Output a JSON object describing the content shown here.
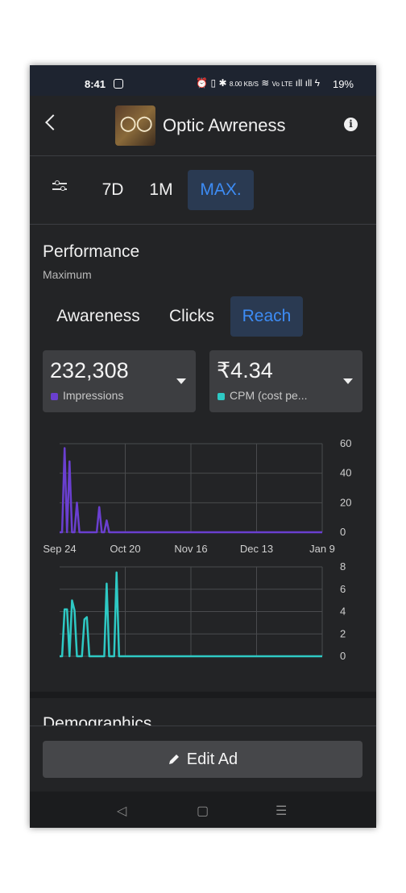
{
  "status_bar": {
    "time": "8:41",
    "network_speed": "8.00 KB/S",
    "lte": "Vo LTE",
    "battery": "19%"
  },
  "header": {
    "title": "Optic Awreness",
    "logo_icon": "eyeglasses-logo",
    "info_icon": "info-icon",
    "back_icon": "back-arrow-icon"
  },
  "range_filter": {
    "options": [
      "7D",
      "1M",
      "MAX."
    ],
    "selected": "MAX.",
    "filter_icon": "sliders-icon"
  },
  "performance": {
    "title": "Performance",
    "subtitle": "Maximum",
    "tabs": [
      "Awareness",
      "Clicks",
      "Reach"
    ],
    "selected_tab": "Reach"
  },
  "metrics": [
    {
      "value": "232,308",
      "label": "Impressions",
      "color": "#6a3fd0"
    },
    {
      "value": "₹4.34",
      "label": "CPM (cost pe...",
      "color": "#2ec9c4"
    }
  ],
  "chart_data": [
    {
      "type": "line",
      "color": "#6a3fd0",
      "x_ticks": [
        "Sep 24",
        "Oct 20",
        "Nov 16",
        "Dec 13",
        "Jan 9"
      ],
      "y_ticks": [
        0,
        20,
        40,
        60
      ],
      "ylim": [
        0,
        60
      ],
      "series": [
        {
          "values": [
            0,
            0,
            57,
            0,
            48,
            0,
            0,
            20,
            0,
            0,
            0,
            0,
            0,
            0,
            0,
            0,
            17,
            0,
            0,
            8,
            0,
            0,
            0,
            0,
            0,
            0,
            0,
            0,
            0,
            0,
            0,
            0,
            0,
            0,
            0,
            0,
            0,
            0,
            0,
            0,
            0,
            0,
            0,
            0,
            0,
            0,
            0,
            0,
            0,
            0,
            0,
            0,
            0,
            0,
            0,
            0,
            0,
            0,
            0,
            0,
            0,
            0,
            0,
            0,
            0,
            0,
            0,
            0,
            0,
            0,
            0,
            0,
            0,
            0,
            0,
            0,
            0,
            0,
            0,
            0,
            0,
            0,
            0,
            0,
            0,
            0,
            0,
            0,
            0,
            0,
            0,
            0,
            0,
            0,
            0,
            0,
            0,
            0,
            0,
            0,
            0,
            0,
            0,
            0,
            0,
            0,
            0
          ]
        }
      ],
      "grid": true
    },
    {
      "type": "line",
      "color": "#2ec9c4",
      "y_ticks": [
        0,
        2,
        4,
        6,
        8
      ],
      "ylim": [
        0,
        8
      ],
      "series": [
        {
          "values": [
            0,
            0,
            4.2,
            4.2,
            0,
            5,
            4.1,
            0,
            0,
            0,
            3.3,
            3.5,
            0,
            0,
            0,
            0,
            0,
            0,
            0,
            6.5,
            0,
            0,
            0,
            7.5,
            0,
            0,
            0,
            0,
            0,
            0,
            0,
            0,
            0,
            0,
            0,
            0,
            0,
            0,
            0,
            0,
            0,
            0,
            0,
            0,
            0,
            0,
            0,
            0,
            0,
            0,
            0,
            0,
            0,
            0,
            0,
            0,
            0,
            0,
            0,
            0,
            0,
            0,
            0,
            0,
            0,
            0,
            0,
            0,
            0,
            0,
            0,
            0,
            0,
            0,
            0,
            0,
            0,
            0,
            0,
            0,
            0,
            0,
            0,
            0,
            0,
            0,
            0,
            0,
            0,
            0,
            0,
            0,
            0,
            0,
            0,
            0,
            0,
            0,
            0,
            0,
            0,
            0,
            0,
            0,
            0,
            0,
            0
          ]
        }
      ],
      "grid": true
    }
  ],
  "demographics": {
    "title": "Demographics"
  },
  "actions": {
    "edit_label": "Edit Ad",
    "edit_icon": "pencil-icon"
  },
  "nav": {
    "back": "◁",
    "home": "▢",
    "recents": "☰"
  }
}
